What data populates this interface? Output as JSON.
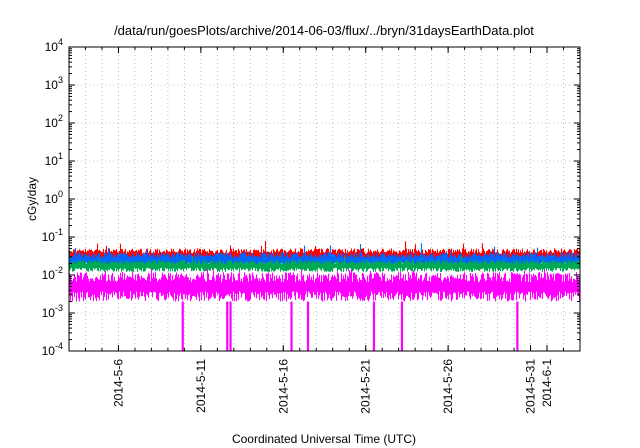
{
  "chart_data": {
    "type": "line",
    "title": "/data/run/goesPlots/archive/2014-06-03/flux/../bryn/31daysEarthData.plot",
    "xlabel": "Coordinated Universal Time (UTC)",
    "ylabel": "cGy/day",
    "yscale": "log",
    "ylim": [
      0.0001,
      10000
    ],
    "xlim": [
      "2014-05-03",
      "2014-06-03"
    ],
    "grid": true,
    "legend": "none",
    "y_tick_labels": [
      {
        "value": 0.0001,
        "base": "10",
        "exp": "-4"
      },
      {
        "value": 0.001,
        "base": "10",
        "exp": "-3"
      },
      {
        "value": 0.01,
        "base": "10",
        "exp": "-2"
      },
      {
        "value": 0.1,
        "base": "10",
        "exp": "-1"
      },
      {
        "value": 1,
        "base": "10",
        "exp": "0"
      },
      {
        "value": 10,
        "base": "10",
        "exp": "1"
      },
      {
        "value": 100,
        "base": "10",
        "exp": "2"
      },
      {
        "value": 1000,
        "base": "10",
        "exp": "3"
      },
      {
        "value": 10000,
        "base": "10",
        "exp": "4"
      }
    ],
    "x_tick_labels": [
      {
        "date": "2014-05-06",
        "label": "2014-5-6"
      },
      {
        "date": "2014-05-11",
        "label": "2014-5-11"
      },
      {
        "date": "2014-05-16",
        "label": "2014-5-16"
      },
      {
        "date": "2014-05-21",
        "label": "2014-5-21"
      },
      {
        "date": "2014-05-26",
        "label": "2014-5-26"
      },
      {
        "date": "2014-05-31",
        "label": "2014-5-31"
      },
      {
        "date": "2014-06-01",
        "label": "2014-6-1"
      }
    ],
    "series": [
      {
        "color": "#ff0000",
        "typical_low": 0.02,
        "typical_high": 0.05,
        "peak": 0.08
      },
      {
        "color": "#0066ff",
        "typical_low": 0.015,
        "typical_high": 0.04,
        "peak": 0.07
      },
      {
        "color": "#00aa55",
        "typical_low": 0.012,
        "typical_high": 0.025,
        "peak": 0.04
      },
      {
        "color": "#ff00ff",
        "typical_low": 0.002,
        "typical_high": 0.012,
        "peak": 0.015
      }
    ],
    "dropouts": [
      {
        "series_color": "#ff00ff",
        "date": "2014-05-09.9",
        "min_value": 0.0001
      },
      {
        "series_color": "#ff00ff",
        "date": "2014-05-12.6",
        "min_value": 0.0001
      },
      {
        "series_color": "#ff00ff",
        "date": "2014-05-12.8",
        "min_value": 0.0001
      },
      {
        "series_color": "#ff00ff",
        "date": "2014-05-16.5",
        "min_value": 0.0001
      },
      {
        "series_color": "#ff00ff",
        "date": "2014-05-17.5",
        "min_value": 0.0001
      },
      {
        "series_color": "#ff00ff",
        "date": "2014-05-21.5",
        "min_value": 0.0001
      },
      {
        "series_color": "#ff00ff",
        "date": "2014-05-23.2",
        "min_value": 0.0001
      },
      {
        "series_color": "#ff00ff",
        "date": "2014-05-30.2",
        "min_value": 0.0001
      }
    ]
  }
}
